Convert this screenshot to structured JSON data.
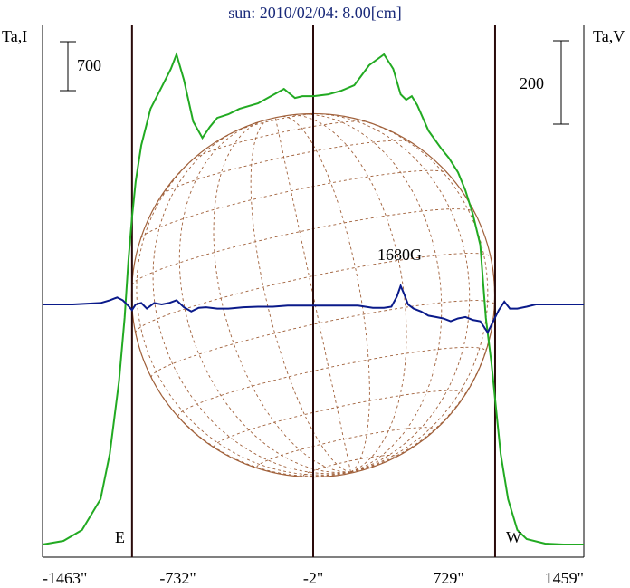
{
  "chart_data": {
    "type": "line",
    "title": "sun: 2010/02/04: 8.00[cm]",
    "left_axis_label": "Ta,I",
    "right_axis_label": "Ta,V",
    "x_ticks": [
      "-1463\"",
      "-732\"",
      "-2\"",
      "729\"",
      "1459\""
    ],
    "x_tick_values": [
      -1463,
      -732,
      -2,
      729,
      1459
    ],
    "xlim": [
      -1463,
      1459
    ],
    "scale_bar_left_label": "700",
    "scale_bar_right_label": "200",
    "limb_east_label": "E",
    "limb_west_label": "W",
    "limb_positions": [
      -980,
      980
    ],
    "center_line": -2,
    "annotation": {
      "text": "1680G",
      "x": 480
    },
    "colors": {
      "intensity": "#22aa22",
      "polarization": "#0a1a8a",
      "disk": "#a0603a",
      "title": "#1a2a7a"
    },
    "series": [
      {
        "name": "intensity",
        "x": [
          -1463,
          -1350,
          -1250,
          -1150,
          -1100,
          -1050,
          -1020,
          -1000,
          -980,
          -960,
          -930,
          -880,
          -820,
          -770,
          -740,
          -700,
          -650,
          -600,
          -560,
          -520,
          -460,
          -400,
          -300,
          -230,
          -160,
          -100,
          -60,
          0,
          80,
          150,
          220,
          300,
          380,
          430,
          470,
          500,
          530,
          560,
          620,
          690,
          730,
          780,
          820,
          860,
          900,
          930,
          960,
          980,
          1010,
          1050,
          1100,
          1150,
          1250,
          1350,
          1459
        ],
        "y": [
          0,
          20,
          80,
          250,
          500,
          900,
          1250,
          1560,
          1800,
          2000,
          2200,
          2400,
          2520,
          2620,
          2700,
          2560,
          2330,
          2240,
          2300,
          2350,
          2370,
          2400,
          2430,
          2470,
          2510,
          2460,
          2470,
          2470,
          2480,
          2500,
          2530,
          2640,
          2700,
          2620,
          2480,
          2450,
          2470,
          2420,
          2280,
          2180,
          2130,
          2050,
          1950,
          1820,
          1650,
          1250,
          1000,
          800,
          500,
          250,
          80,
          30,
          5,
          0,
          0
        ]
      },
      {
        "name": "polarization",
        "x": [
          -1463,
          -1300,
          -1150,
          -1100,
          -1060,
          -1030,
          -1000,
          -980,
          -960,
          -930,
          -900,
          -860,
          -820,
          -780,
          -740,
          -700,
          -660,
          -620,
          -580,
          -520,
          -460,
          -380,
          -300,
          -220,
          -140,
          -60,
          0,
          80,
          160,
          240,
          320,
          380,
          420,
          450,
          470,
          490,
          510,
          540,
          580,
          620,
          660,
          700,
          740,
          780,
          820,
          860,
          900,
          940,
          970,
          1000,
          1030,
          1060,
          1100,
          1150,
          1200,
          1300,
          1459
        ],
        "y": [
          0,
          0,
          5,
          15,
          25,
          15,
          -5,
          -20,
          0,
          5,
          -15,
          5,
          0,
          5,
          15,
          -10,
          -25,
          -12,
          -10,
          -15,
          -15,
          -10,
          -8,
          -8,
          -4,
          -4,
          -4,
          -4,
          -4,
          -4,
          -12,
          -12,
          -8,
          28,
          66,
          35,
          0,
          -15,
          -25,
          -40,
          -45,
          -50,
          -60,
          -50,
          -45,
          -55,
          -60,
          -100,
          -60,
          -20,
          10,
          -15,
          -15,
          -8,
          0,
          0,
          0
        ]
      }
    ]
  }
}
